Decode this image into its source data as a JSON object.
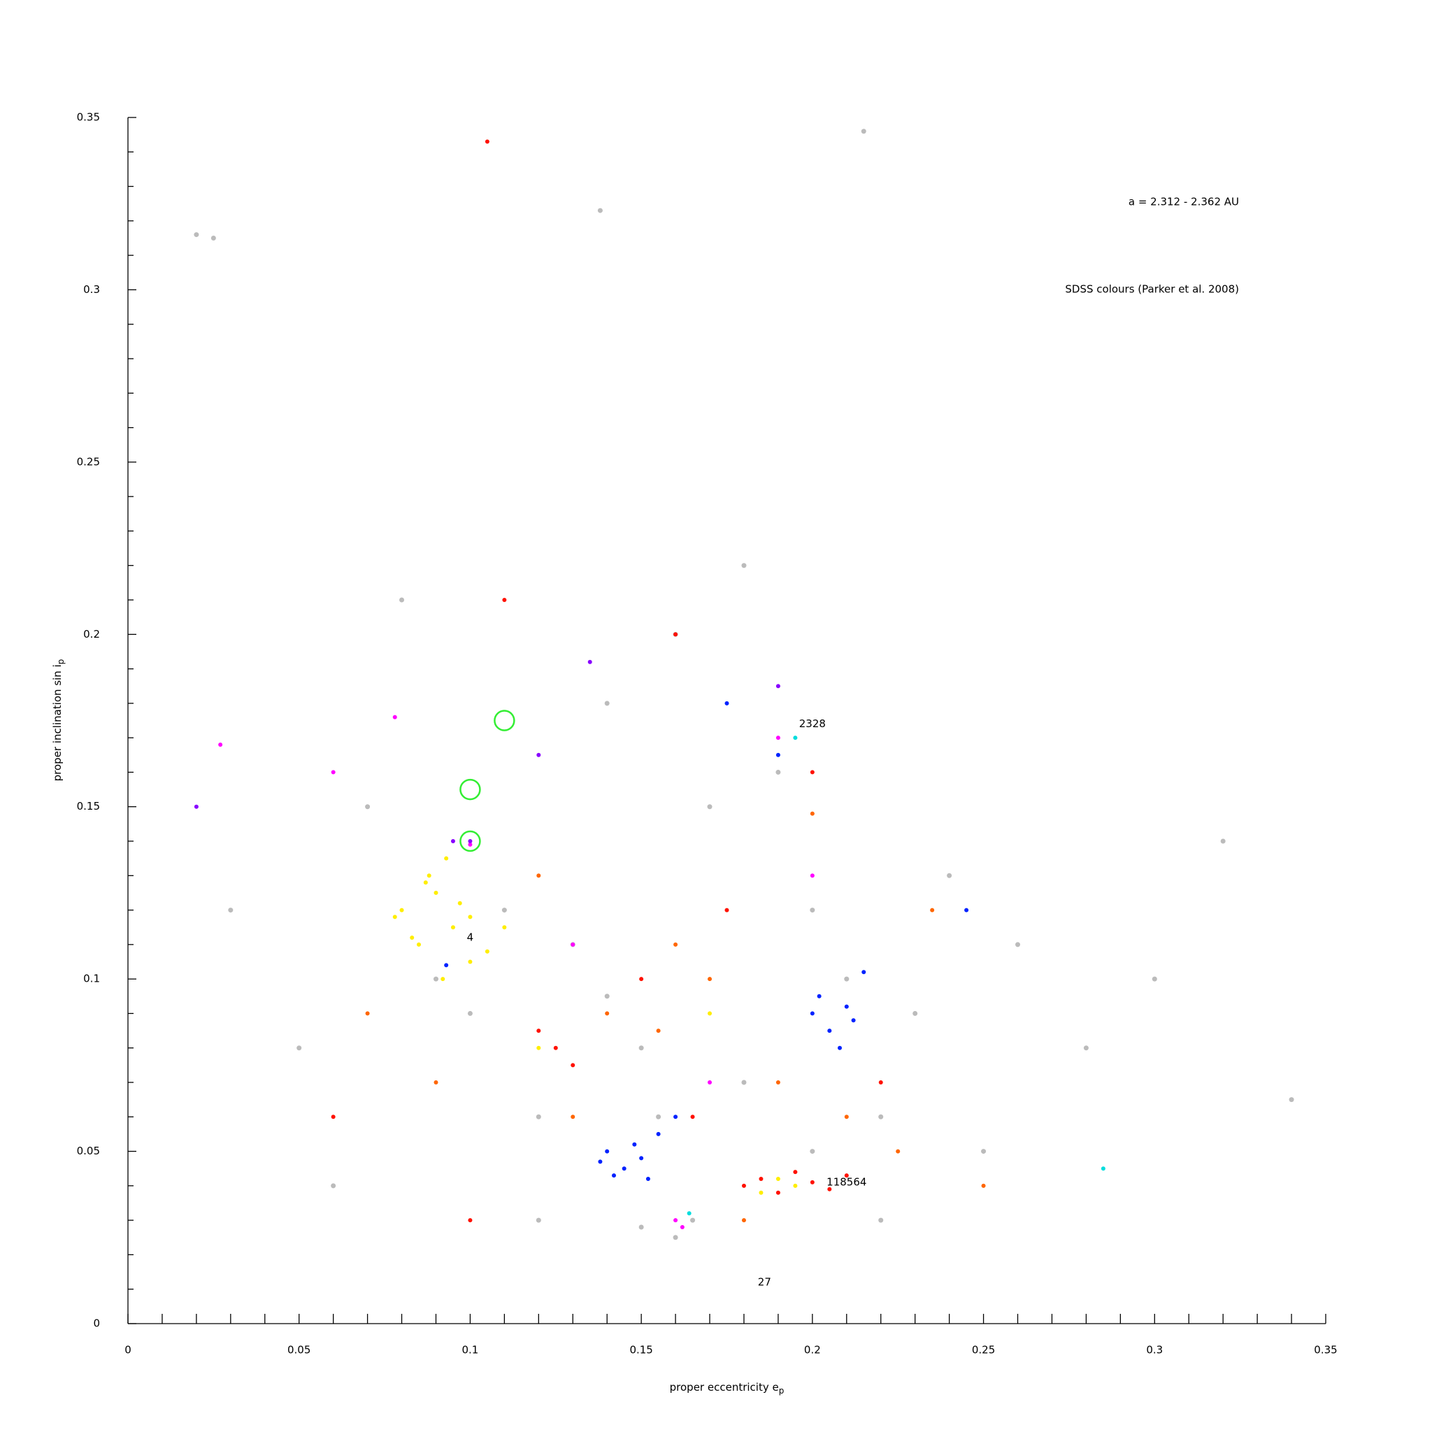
{
  "chart_data": {
    "type": "scatter",
    "xlabel": "proper eccentricity e",
    "xlabel_sub": "p",
    "ylabel": "proper inclination sin i",
    "ylabel_sub": "p",
    "notes": [
      "a = 2.312 - 2.362 AU",
      "SDSS colours (Parker et al. 2008)"
    ],
    "xlim": [
      0,
      0.35
    ],
    "ylim": [
      0,
      0.35
    ],
    "xticks": [
      0,
      0.05,
      0.1,
      0.15,
      0.2,
      0.25,
      0.3,
      0.35
    ],
    "yticks": [
      0,
      0.05,
      0.1,
      0.15,
      0.2,
      0.25,
      0.3,
      0.35
    ],
    "xminorticks": [
      0.01,
      0.02,
      0.03,
      0.04,
      0.06,
      0.07,
      0.08,
      0.09,
      0.11,
      0.12,
      0.13,
      0.14,
      0.16,
      0.17,
      0.18,
      0.19,
      0.21,
      0.22,
      0.23,
      0.24,
      0.26,
      0.27,
      0.28,
      0.29,
      0.31,
      0.32,
      0.33,
      0.34
    ],
    "yminorticks": [
      0.01,
      0.02,
      0.03,
      0.04,
      0.06,
      0.07,
      0.08,
      0.09,
      0.11,
      0.12,
      0.13,
      0.14,
      0.16,
      0.17,
      0.18,
      0.19,
      0.21,
      0.22,
      0.23,
      0.24,
      0.26,
      0.27,
      0.28,
      0.29,
      0.31,
      0.32,
      0.33,
      0.34
    ],
    "series": [
      {
        "color": "#bbbbbb",
        "x": [
          0.02,
          0.03,
          0.05,
          0.07,
          0.08,
          0.09,
          0.1,
          0.11,
          0.12,
          0.13,
          0.14,
          0.15,
          0.16,
          0.17,
          0.18,
          0.19,
          0.2,
          0.21,
          0.22,
          0.23,
          0.24,
          0.25,
          0.26,
          0.28,
          0.3,
          0.32,
          0.34,
          0.06,
          0.12,
          0.15,
          0.16,
          0.165,
          0.155,
          0.14,
          0.18,
          0.2,
          0.22,
          0.025,
          0.138,
          0.215
        ],
        "y": [
          0.316,
          0.12,
          0.08,
          0.15,
          0.21,
          0.1,
          0.09,
          0.12,
          0.06,
          0.11,
          0.095,
          0.08,
          0.2,
          0.15,
          0.07,
          0.16,
          0.12,
          0.1,
          0.06,
          0.09,
          0.13,
          0.05,
          0.11,
          0.08,
          0.1,
          0.14,
          0.065,
          0.04,
          0.03,
          0.028,
          0.025,
          0.03,
          0.06,
          0.18,
          0.22,
          0.05,
          0.03,
          0.315,
          0.323,
          0.346
        ]
      },
      {
        "color": "#ffee00",
        "x": [
          0.08,
          0.085,
          0.09,
          0.095,
          0.1,
          0.105,
          0.088,
          0.092,
          0.097,
          0.083,
          0.11,
          0.078,
          0.093,
          0.1,
          0.087,
          0.19,
          0.195,
          0.185,
          0.12,
          0.17
        ],
        "y": [
          0.12,
          0.11,
          0.125,
          0.115,
          0.118,
          0.108,
          0.13,
          0.1,
          0.122,
          0.112,
          0.115,
          0.118,
          0.135,
          0.105,
          0.128,
          0.042,
          0.04,
          0.038,
          0.08,
          0.09
        ]
      },
      {
        "color": "#ff1100",
        "x": [
          0.18,
          0.185,
          0.19,
          0.195,
          0.2,
          0.205,
          0.21,
          0.125,
          0.13,
          0.12,
          0.15,
          0.165,
          0.22,
          0.06,
          0.1,
          0.11,
          0.2,
          0.175,
          0.16,
          0.105
        ],
        "y": [
          0.04,
          0.042,
          0.038,
          0.044,
          0.041,
          0.039,
          0.043,
          0.08,
          0.075,
          0.085,
          0.1,
          0.06,
          0.07,
          0.06,
          0.03,
          0.21,
          0.16,
          0.12,
          0.2,
          0.343
        ]
      },
      {
        "color": "#ff6600",
        "x": [
          0.14,
          0.155,
          0.17,
          0.19,
          0.21,
          0.225,
          0.07,
          0.09,
          0.2,
          0.235,
          0.13,
          0.18,
          0.16,
          0.12,
          0.25
        ],
        "y": [
          0.09,
          0.085,
          0.1,
          0.07,
          0.06,
          0.05,
          0.09,
          0.07,
          0.148,
          0.12,
          0.06,
          0.03,
          0.11,
          0.13,
          0.04
        ]
      },
      {
        "color": "#0022ff",
        "x": [
          0.14,
          0.145,
          0.15,
          0.148,
          0.142,
          0.155,
          0.138,
          0.152,
          0.2,
          0.205,
          0.21,
          0.208,
          0.202,
          0.212,
          0.19,
          0.175,
          0.16,
          0.215,
          0.093,
          0.245
        ],
        "y": [
          0.05,
          0.045,
          0.048,
          0.052,
          0.043,
          0.055,
          0.047,
          0.042,
          0.09,
          0.085,
          0.092,
          0.08,
          0.095,
          0.088,
          0.165,
          0.18,
          0.06,
          0.102,
          0.104,
          0.12
        ]
      },
      {
        "color": "#ff00ff",
        "x": [
          0.027,
          0.078,
          0.1,
          0.162,
          0.16,
          0.17,
          0.06,
          0.19,
          0.13,
          0.2
        ],
        "y": [
          0.168,
          0.176,
          0.139,
          0.028,
          0.03,
          0.07,
          0.16,
          0.17,
          0.11,
          0.13
        ]
      },
      {
        "color": "#8800ff",
        "x": [
          0.1,
          0.135,
          0.095,
          0.19,
          0.02,
          0.12
        ],
        "y": [
          0.14,
          0.192,
          0.14,
          0.185,
          0.15,
          0.165
        ]
      },
      {
        "color": "#00dddd",
        "x": [
          0.164,
          0.285,
          0.195
        ],
        "y": [
          0.032,
          0.045,
          0.17
        ]
      }
    ],
    "circles": {
      "color": "#33ee33",
      "x": [
        0.11,
        0.1,
        0.1
      ],
      "y": [
        0.175,
        0.155,
        0.14
      ]
    },
    "labels": [
      {
        "text": "2328",
        "x": 0.2,
        "y": 0.174
      },
      {
        "text": "4",
        "x": 0.1,
        "y": 0.112
      },
      {
        "text": "118564",
        "x": 0.21,
        "y": 0.041
      },
      {
        "text": "27",
        "x": 0.186,
        "y": 0.012
      }
    ]
  }
}
